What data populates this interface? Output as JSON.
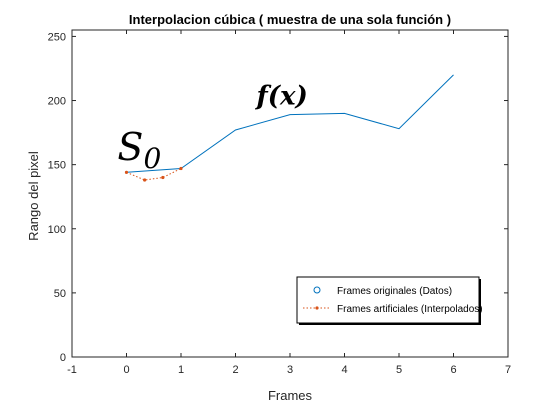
{
  "chart_data": {
    "type": "line",
    "title": "Interpolacion cúbica ( muestra de una sola función )",
    "xlabel": "Frames",
    "ylabel": "Rango del pixel",
    "xlim": [
      -1,
      7
    ],
    "ylim": [
      0,
      255
    ],
    "xticks": [
      -1,
      0,
      1,
      2,
      3,
      4,
      5,
      6,
      7
    ],
    "yticks": [
      0,
      50,
      100,
      150,
      200,
      250
    ],
    "grid": false,
    "legend_position": "bottom-right",
    "series": [
      {
        "name": "Frames originales (Datos)",
        "style": "solid line",
        "color": "#0072BD",
        "x": [
          0,
          1,
          2,
          3,
          4,
          5,
          6
        ],
        "y": [
          144,
          147,
          177,
          189,
          190,
          178,
          220
        ]
      },
      {
        "name": "Frames artificiales (Interpolados)",
        "style": "dotted line with dot markers",
        "color": "#D95319",
        "x": [
          0,
          0.333,
          0.667,
          1
        ],
        "y": [
          144,
          138,
          140,
          147
        ]
      }
    ],
    "annotations": [
      {
        "text": "S",
        "subscript": "0",
        "x": 0.2,
        "y": 163
      },
      {
        "text": "f(x)",
        "x": 2.9,
        "y": 203
      }
    ]
  }
}
